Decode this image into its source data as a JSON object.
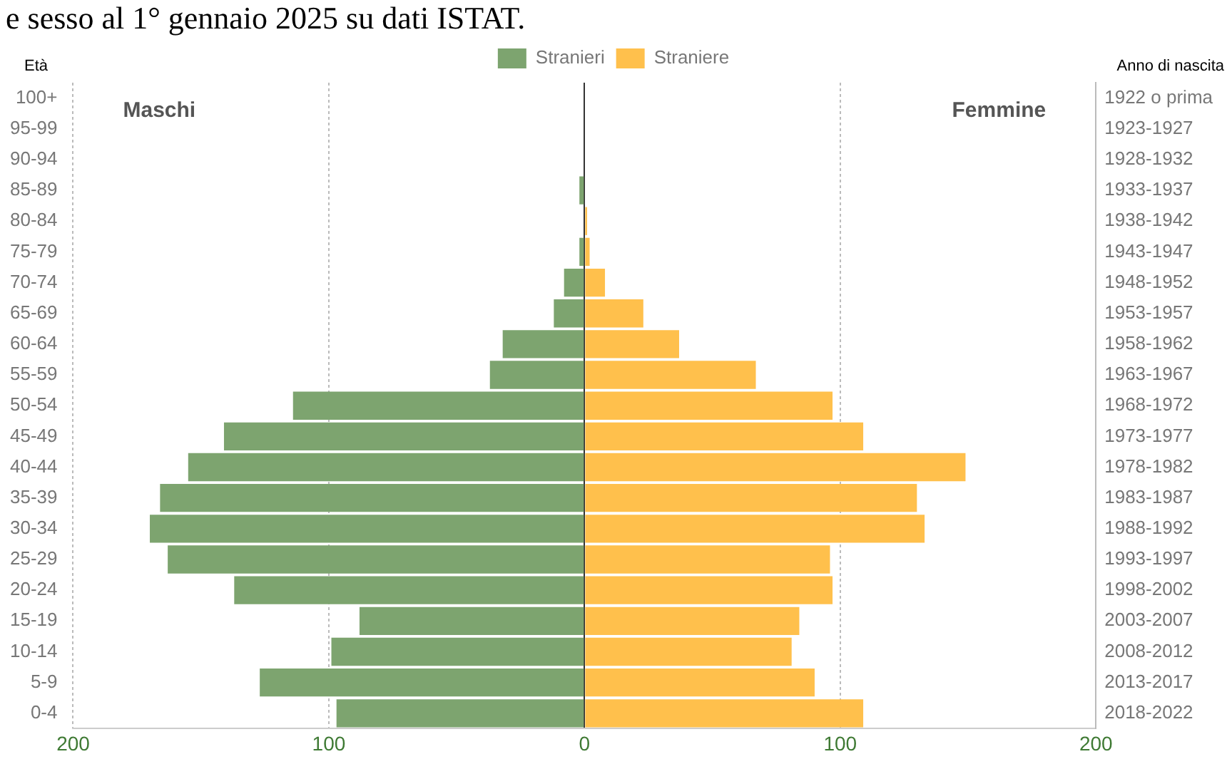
{
  "chart_data": {
    "type": "bar",
    "orientation": "horizontal",
    "stacked": true,
    "title": "e sesso al 1° gennaio 2025 su dati ISTAT.",
    "ylabel": "Età",
    "y2label": "Anno di nascita",
    "categories": [
      "100+",
      "95-99",
      "90-94",
      "85-89",
      "80-84",
      "75-79",
      "70-74",
      "65-69",
      "60-64",
      "55-59",
      "50-54",
      "45-49",
      "40-44",
      "35-39",
      "30-34",
      "25-29",
      "20-24",
      "15-19",
      "10-14",
      "5-9",
      "0-4"
    ],
    "y2_categories": [
      "1922 o prima",
      "1923-1927",
      "1928-1932",
      "1933-1937",
      "1938-1942",
      "1943-1947",
      "1948-1952",
      "1953-1957",
      "1958-1962",
      "1963-1967",
      "1968-1972",
      "1973-1977",
      "1978-1982",
      "1983-1987",
      "1988-1992",
      "1993-1997",
      "1998-2002",
      "2003-2007",
      "2008-2012",
      "2013-2017",
      "2018-2022"
    ],
    "series": [
      {
        "name": "Stranieri",
        "color": "#7da46f",
        "values": [
          0,
          0,
          0,
          -2,
          0,
          -2,
          -8,
          -12,
          -32,
          -37,
          -114,
          -141,
          -155,
          -166,
          -170,
          -163,
          -137,
          -88,
          -99,
          -127,
          -97
        ]
      },
      {
        "name": "Straniere",
        "color": "#ffc04c",
        "values": [
          0,
          0,
          0,
          0,
          1,
          2,
          8,
          23,
          37,
          67,
          97,
          109,
          149,
          130,
          133,
          96,
          97,
          84,
          81,
          90,
          109
        ]
      }
    ],
    "xlim": [
      -200,
      200
    ],
    "xticks": [
      {
        "value": -200,
        "label": "200"
      },
      {
        "value": -100,
        "label": "100"
      },
      0,
      100,
      200
    ],
    "grid": "x",
    "legend": "top",
    "annotations": [
      "Maschi",
      "Femmine"
    ]
  }
}
